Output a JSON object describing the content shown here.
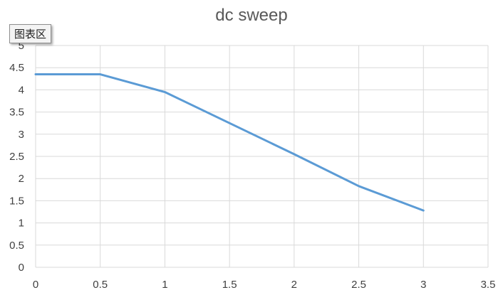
{
  "chart_data": {
    "type": "line",
    "title": "dc sweep",
    "xlabel": "",
    "ylabel": "",
    "xlim": [
      0,
      3.5
    ],
    "ylim": [
      0,
      5
    ],
    "xticks": [
      0,
      0.5,
      1,
      1.5,
      2,
      2.5,
      3,
      3.5
    ],
    "yticks": [
      0,
      0.5,
      1,
      1.5,
      2,
      2.5,
      3,
      3.5,
      4,
      4.5,
      5
    ],
    "xtick_labels": [
      "0",
      "0.5",
      "1",
      "1.5",
      "2",
      "2.5",
      "3",
      "3.5"
    ],
    "ytick_labels": [
      "0",
      "0.5",
      "1",
      "1.5",
      "2",
      "2.5",
      "3",
      "3.5",
      "4",
      "4.5",
      "5"
    ],
    "grid": true,
    "legend": "none",
    "series": [
      {
        "color": "#5B9BD5",
        "x": [
          0,
          0.5,
          1,
          1.5,
          2,
          2.5,
          3
        ],
        "y": [
          4.35,
          4.35,
          3.95,
          3.25,
          2.55,
          1.83,
          1.28
        ]
      }
    ]
  },
  "tooltip": {
    "label": "图表区"
  },
  "colors": {
    "grid": "#d9d9d9",
    "text": "#595959"
  }
}
